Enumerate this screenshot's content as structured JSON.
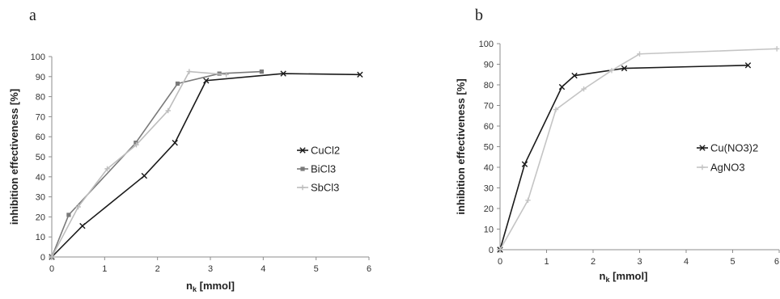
{
  "panels": {
    "a": {
      "label": "a"
    },
    "b": {
      "label": "b"
    }
  },
  "chart_data": [
    {
      "type": "line",
      "panel": "a",
      "title": "",
      "xlabel": "n",
      "xlabel_sub": "k",
      "xlabel_unit": " [mmol]",
      "ylabel": "inhibition effectiveness [%]",
      "xlim": [
        0,
        6
      ],
      "ylim": [
        0,
        100
      ],
      "xticks": [
        "0",
        "1",
        "2",
        "3",
        "4",
        "5",
        "6"
      ],
      "yticks": [
        "0",
        "10",
        "20",
        "30",
        "40",
        "50",
        "60",
        "70",
        "80",
        "90",
        "100"
      ],
      "grid": false,
      "legend_position": "right",
      "series": [
        {
          "name": "CuCl2",
          "color": "#1a1a1a",
          "marker": "x",
          "x": [
            0,
            0.58,
            1.75,
            2.33,
            2.92,
            4.38,
            5.83
          ],
          "y": [
            0,
            15.5,
            40.5,
            57,
            88,
            91.5,
            91
          ]
        },
        {
          "name": "BiCl3",
          "color": "#7a7a7a",
          "marker": "square",
          "x": [
            0,
            0.32,
            1.59,
            2.38,
            3.17,
            3.97
          ],
          "y": [
            0,
            21,
            57,
            86.5,
            91.5,
            92.5
          ]
        },
        {
          "name": "SbCl3",
          "color": "#bdbdbd",
          "marker": "plus",
          "x": [
            0,
            0.5,
            1.05,
            1.6,
            2.2,
            2.6,
            3.3
          ],
          "y": [
            0,
            25,
            44,
            56,
            73,
            92.5,
            91
          ]
        }
      ]
    },
    {
      "type": "line",
      "panel": "b",
      "title": "",
      "xlabel": "n",
      "xlabel_sub": "k",
      "xlabel_unit": " [mmol]",
      "ylabel": "inhibition effectiveness [%]",
      "xlim": [
        0,
        6
      ],
      "ylim": [
        0,
        100
      ],
      "xticks": [
        "0",
        "1",
        "2",
        "3",
        "4",
        "5",
        "6"
      ],
      "yticks": [
        "0",
        "10",
        "20",
        "30",
        "40",
        "50",
        "60",
        "70",
        "80",
        "90",
        "100"
      ],
      "grid": false,
      "legend_position": "right",
      "series": [
        {
          "name": "Cu(NO3)2",
          "color": "#1a1a1a",
          "marker": "x",
          "x": [
            0,
            0.53,
            1.33,
            1.6,
            2.67,
            5.33
          ],
          "y": [
            0,
            41.5,
            79,
            84.5,
            88,
            89.5
          ]
        },
        {
          "name": "AgNO3",
          "color": "#c4c4c4",
          "marker": "plus",
          "x": [
            0,
            0.6,
            1.2,
            1.8,
            2.4,
            3.0,
            5.95
          ],
          "y": [
            0,
            24,
            68,
            78,
            87,
            95,
            97.5
          ]
        }
      ]
    }
  ]
}
